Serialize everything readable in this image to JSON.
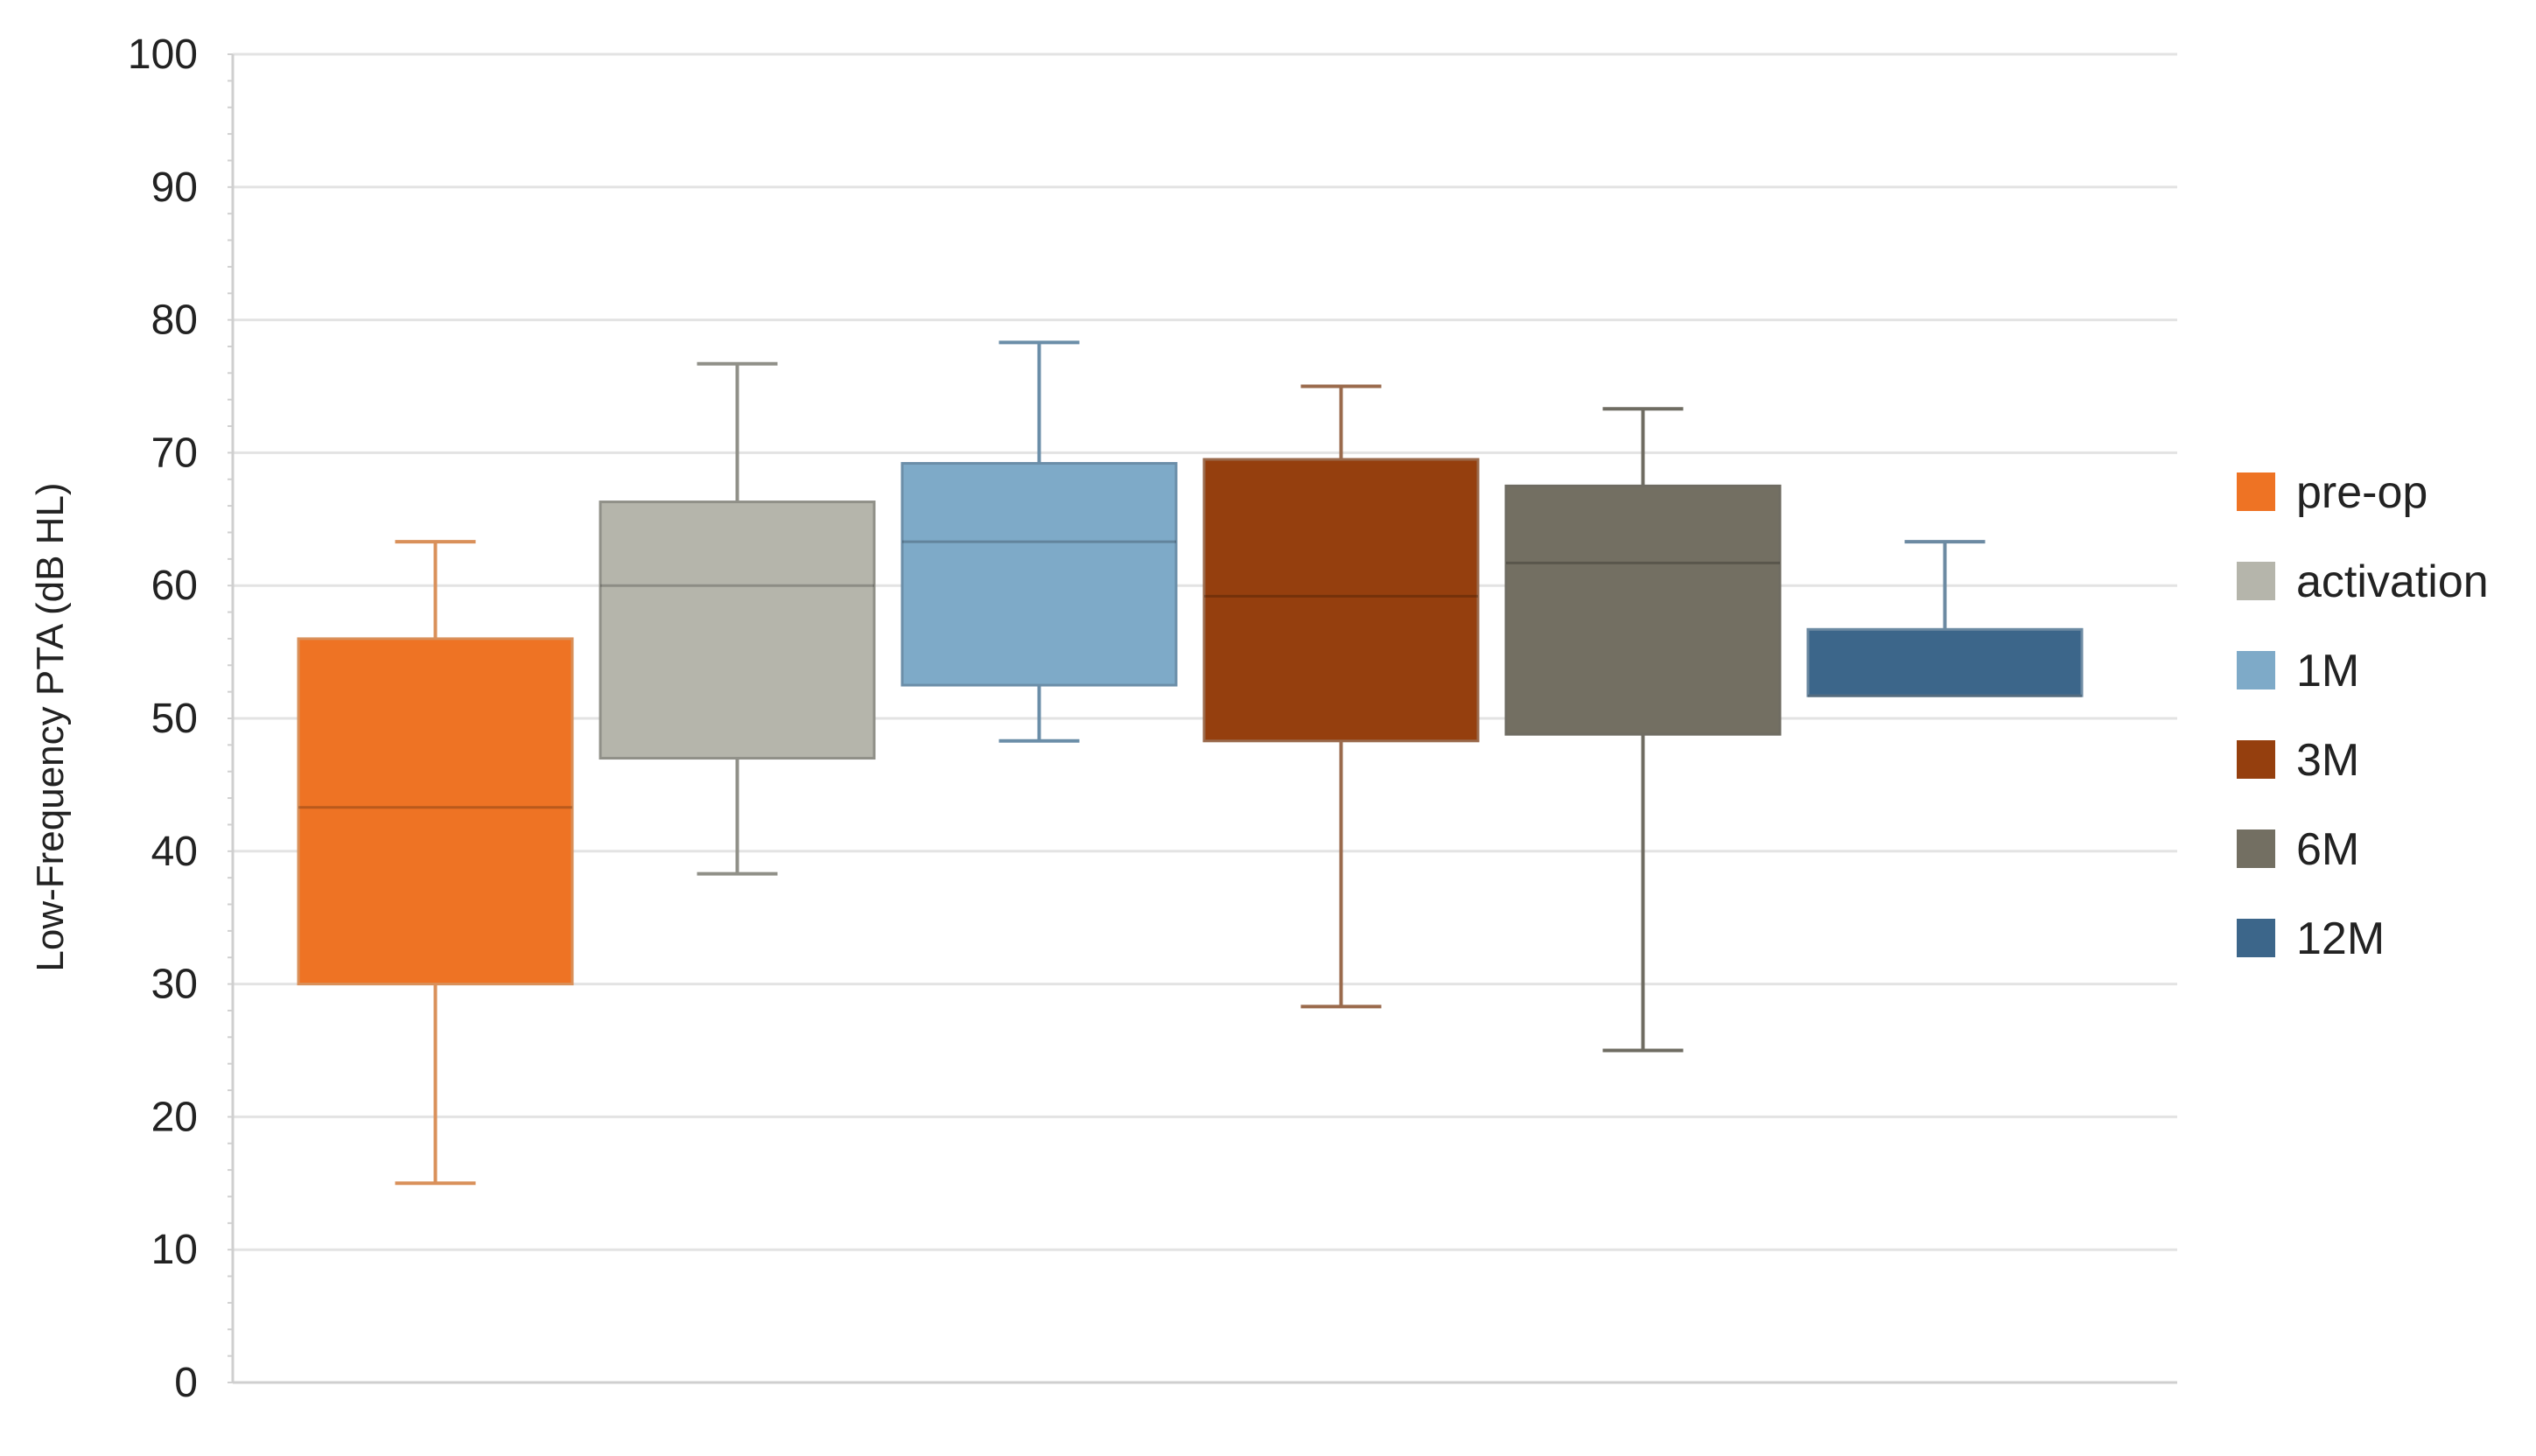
{
  "chart_data": {
    "type": "box",
    "title": "",
    "xlabel": "",
    "ylabel": "Low-Frequency PTA  (dB HL)",
    "ylim": [
      0,
      100
    ],
    "yticks": [
      0,
      10,
      20,
      30,
      40,
      50,
      60,
      70,
      80,
      90,
      100
    ],
    "grid": true,
    "legend_position": "right",
    "series": [
      {
        "name": "pre-op",
        "color": "#ee7324",
        "whisker_color": "#d9905a",
        "min": 15,
        "q1": 30,
        "median": 43.3,
        "q3": 56,
        "max": 63.3
      },
      {
        "name": "activation",
        "color": "#b5b5ab",
        "whisker_color": "#909088",
        "min": 38.3,
        "q1": 47,
        "median": 60,
        "q3": 66.3,
        "max": 76.7
      },
      {
        "name": "1M",
        "color": "#7eaac8",
        "whisker_color": "#6b8ea8",
        "min": 48.3,
        "q1": 52.5,
        "median": 63.3,
        "q3": 69.2,
        "max": 78.3
      },
      {
        "name": "3M",
        "color": "#953f0e",
        "whisker_color": "#9a6a4c",
        "min": 28.3,
        "q1": 48.3,
        "median": 59.2,
        "q3": 69.5,
        "max": 75
      },
      {
        "name": "6M",
        "color": "#736f62",
        "whisker_color": "#6f6c62",
        "min": 25,
        "q1": 48.8,
        "median": 61.7,
        "q3": 67.5,
        "max": 73.3
      },
      {
        "name": "12M",
        "color": "#3c668a",
        "whisker_color": "#6c8aa2",
        "min": 51.7,
        "q1": 51.7,
        "median": 51.7,
        "q3": 56.7,
        "max": 63.3
      }
    ]
  }
}
